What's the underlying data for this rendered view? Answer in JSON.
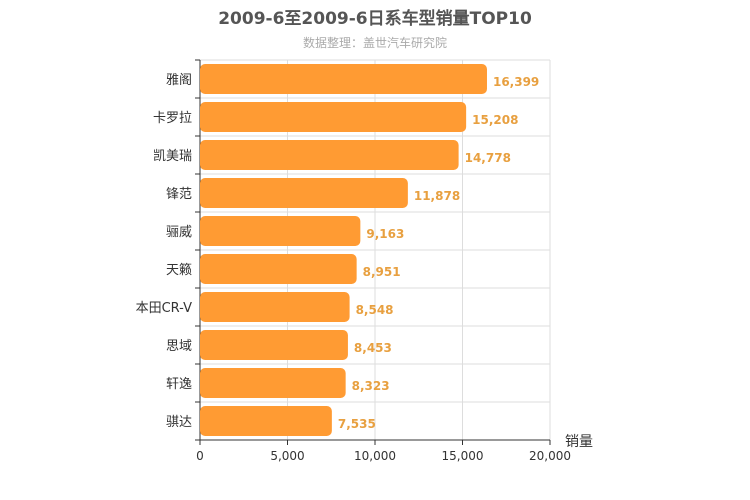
{
  "chart_data": {
    "type": "bar",
    "orientation": "horizontal",
    "title": "2009-6至2009-6日系车型销量TOP10",
    "subtitle": "数据整理：盖世汽车研究院",
    "xlabel": "销量",
    "ylabel": "",
    "categories": [
      "雅阁",
      "卡罗拉",
      "凯美瑞",
      "锋范",
      "骊威",
      "天籁",
      "本田CR-V",
      "思域",
      "轩逸",
      "骐达"
    ],
    "values": [
      16399,
      15208,
      14778,
      11878,
      9163,
      8951,
      8548,
      8453,
      8323,
      7535
    ],
    "value_labels": [
      "16,399",
      "15,208",
      "14,778",
      "11,878",
      "9,163",
      "8,951",
      "8,548",
      "8,453",
      "8,323",
      "7,535"
    ],
    "xlim": [
      0,
      20000
    ],
    "x_ticks": [
      "0",
      "5,000",
      "10,000",
      "15,000",
      "20,000"
    ],
    "grid": true,
    "bar_color": "#ff9b33",
    "value_label_color": "#e8a040"
  }
}
